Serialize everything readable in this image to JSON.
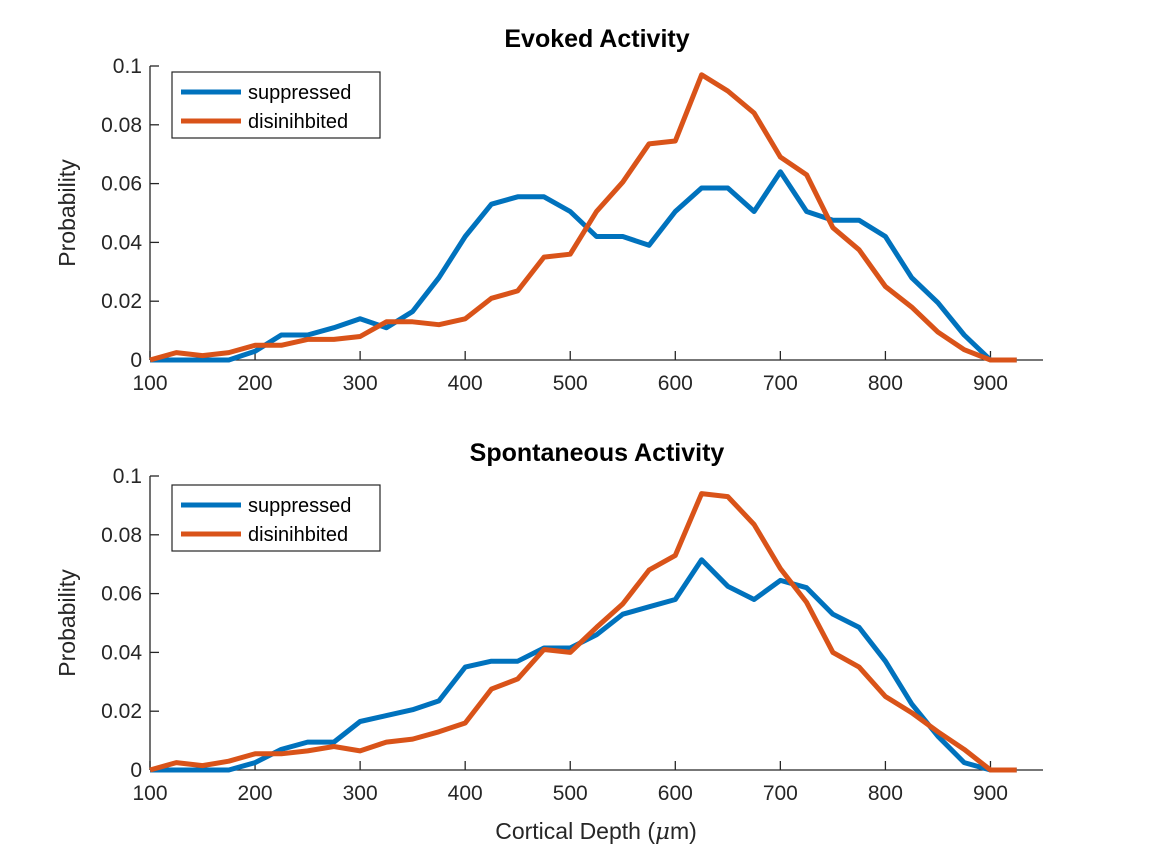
{
  "chart_data": [
    {
      "type": "line",
      "title": "Evoked Activity",
      "xlabel": "",
      "ylabel": "Probability",
      "xlim": [
        100,
        950
      ],
      "ylim": [
        0,
        0.1
      ],
      "xticks": [
        "100",
        "200",
        "300",
        "400",
        "500",
        "600",
        "700",
        "800",
        "900"
      ],
      "yticks": [
        "0",
        "0.02",
        "0.04",
        "0.06",
        "0.08",
        "0.1"
      ],
      "legend_position": "top-left",
      "x": [
        100,
        125,
        150,
        175,
        200,
        225,
        250,
        275,
        300,
        325,
        350,
        375,
        400,
        425,
        450,
        475,
        500,
        525,
        550,
        575,
        600,
        625,
        650,
        675,
        700,
        725,
        750,
        775,
        800,
        825,
        850,
        875,
        900,
        925
      ],
      "series": [
        {
          "name": "suppressed",
          "color": "#0072BD",
          "values": [
            0,
            0,
            0,
            0,
            0.003,
            0.0085,
            0.0085,
            0.011,
            0.014,
            0.011,
            0.0165,
            0.028,
            0.042,
            0.053,
            0.0555,
            0.0555,
            0.0505,
            0.042,
            0.042,
            0.039,
            0.0505,
            0.0585,
            0.0585,
            0.0505,
            0.064,
            0.0505,
            0.0475,
            0.0475,
            0.042,
            0.028,
            0.0195,
            0.0085,
            0,
            0
          ]
        },
        {
          "name": "disinihbited",
          "color": "#D95319",
          "values": [
            0,
            0.0025,
            0.0015,
            0.0025,
            0.005,
            0.005,
            0.007,
            0.007,
            0.008,
            0.013,
            0.013,
            0.012,
            0.014,
            0.021,
            0.0235,
            0.035,
            0.036,
            0.0505,
            0.0605,
            0.0735,
            0.0745,
            0.097,
            0.0915,
            0.084,
            0.069,
            0.063,
            0.045,
            0.0375,
            0.025,
            0.018,
            0.0095,
            0.0035,
            0,
            0
          ]
        }
      ]
    },
    {
      "type": "line",
      "title": "Spontaneous Activity",
      "xlabel": "Cortical Depth (",
      "xlabel_mu": "μ",
      "xlabel_end": "m)",
      "ylabel": "Probability",
      "xlim": [
        100,
        950
      ],
      "ylim": [
        0,
        0.1
      ],
      "xticks": [
        "100",
        "200",
        "300",
        "400",
        "500",
        "600",
        "700",
        "800",
        "900"
      ],
      "yticks": [
        "0",
        "0.02",
        "0.04",
        "0.06",
        "0.08",
        "0.1"
      ],
      "legend_position": "top-left",
      "x": [
        100,
        125,
        150,
        175,
        200,
        225,
        250,
        275,
        300,
        325,
        350,
        375,
        400,
        425,
        450,
        475,
        500,
        525,
        550,
        575,
        600,
        625,
        650,
        675,
        700,
        725,
        750,
        775,
        800,
        825,
        850,
        875,
        900,
        925
      ],
      "series": [
        {
          "name": "suppressed",
          "color": "#0072BD",
          "values": [
            0,
            0,
            0,
            0,
            0.0025,
            0.007,
            0.0095,
            0.0095,
            0.0165,
            0.0185,
            0.0205,
            0.0235,
            0.035,
            0.037,
            0.037,
            0.0415,
            0.0415,
            0.046,
            0.053,
            0.0555,
            0.058,
            0.0715,
            0.0625,
            0.058,
            0.0645,
            0.062,
            0.053,
            0.0485,
            0.037,
            0.0225,
            0.0115,
            0.0025,
            0,
            0
          ]
        },
        {
          "name": "disinihbited",
          "color": "#D95319",
          "values": [
            0,
            0.0025,
            0.0015,
            0.003,
            0.0055,
            0.0055,
            0.0065,
            0.008,
            0.0065,
            0.0095,
            0.0105,
            0.013,
            0.016,
            0.0275,
            0.031,
            0.041,
            0.04,
            0.0485,
            0.0565,
            0.068,
            0.073,
            0.094,
            0.093,
            0.0835,
            0.0685,
            0.057,
            0.04,
            0.035,
            0.025,
            0.0195,
            0.013,
            0.007,
            0,
            0
          ]
        }
      ]
    }
  ]
}
